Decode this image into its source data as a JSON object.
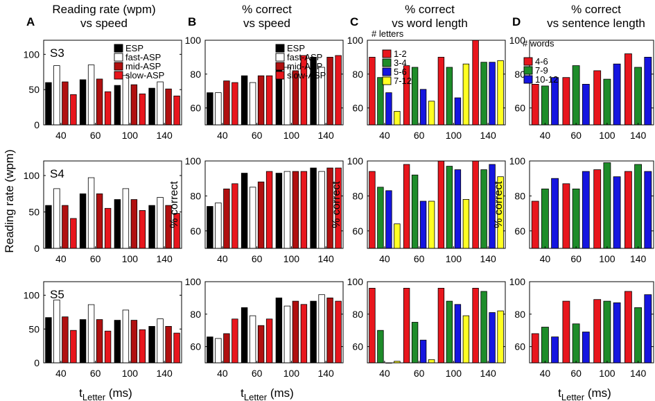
{
  "panels": [
    {
      "letter": "A",
      "title": [
        "Reading rate (wpm)",
        "vs speed"
      ]
    },
    {
      "letter": "B",
      "title": [
        "% correct",
        "vs speed"
      ]
    },
    {
      "letter": "C",
      "title": [
        "% correct",
        "vs word length"
      ]
    },
    {
      "letter": "D",
      "title": [
        "% correct",
        "vs sentence length"
      ]
    }
  ],
  "row_labels": [
    "S3",
    "S4",
    "S5"
  ],
  "y_axis_labels": {
    "rate": "Reading rate (wpm)",
    "correct": "% correct"
  },
  "x_axis_label": {
    "main": "t",
    "sub": "Letter",
    "unit": " (ms)"
  },
  "legends": {
    "speed": {
      "title": "",
      "entries": [
        "ESP",
        "fast-ASP",
        "mid-ASP",
        "slow-ASP"
      ]
    },
    "letters": {
      "title": "# letters",
      "entries": [
        "1-2",
        "3-4",
        "5-6",
        "7-12"
      ]
    },
    "words": {
      "title": "# words",
      "entries": [
        "4-6",
        "7-9",
        "10-12"
      ]
    }
  },
  "colors": {
    "speed": [
      "#000000",
      "#ffffff",
      "#b01010",
      "#e8161d"
    ],
    "length4": [
      "#e8161d",
      "#1e8c2a",
      "#1515e0",
      "#ffff22"
    ],
    "length3": [
      "#e8161d",
      "#1e8c2a",
      "#1515e0"
    ],
    "stroke": "#000000"
  },
  "chart_data": [
    {
      "id": "A-S3",
      "type": "bar",
      "categories": [
        "40",
        "60",
        "100",
        "140"
      ],
      "ylim": [
        0,
        120
      ],
      "yticks": [
        0,
        50,
        100
      ],
      "legend": "speed",
      "series": [
        {
          "name": "ESP",
          "values": [
            60,
            64,
            56,
            52
          ]
        },
        {
          "name": "fast-ASP",
          "values": [
            84,
            85,
            70,
            61
          ]
        },
        {
          "name": "mid-ASP",
          "values": [
            61,
            65,
            57,
            51
          ]
        },
        {
          "name": "slow-ASP",
          "values": [
            43,
            47,
            44,
            41
          ]
        }
      ]
    },
    {
      "id": "B-S3",
      "type": "bar",
      "categories": [
        "40",
        "60",
        "100",
        "140"
      ],
      "ylim": [
        50,
        100
      ],
      "yticks": [
        60,
        80,
        100
      ],
      "legend": "speed",
      "series": [
        {
          "name": "ESP",
          "values": [
            69,
            79,
            83,
            90
          ]
        },
        {
          "name": "fast-ASP",
          "values": [
            69,
            75,
            84,
            84
          ]
        },
        {
          "name": "mid-ASP",
          "values": [
            76,
            79,
            82,
            90
          ]
        },
        {
          "name": "slow-ASP",
          "values": [
            75,
            79,
            91,
            91
          ]
        }
      ]
    },
    {
      "id": "C-S3",
      "type": "bar",
      "categories": [
        "40",
        "60",
        "100",
        "140"
      ],
      "ylim": [
        50,
        100
      ],
      "yticks": [
        60,
        80,
        100
      ],
      "legend": "letters",
      "series": [
        {
          "name": "1-2",
          "values": [
            90,
            85,
            90,
            100
          ]
        },
        {
          "name": "3-4",
          "values": [
            78,
            84,
            84,
            87
          ]
        },
        {
          "name": "5-6",
          "values": [
            69,
            71,
            66,
            87
          ]
        },
        {
          "name": "7-12",
          "values": [
            58,
            64,
            86,
            88
          ]
        }
      ]
    },
    {
      "id": "D-S3",
      "type": "bar",
      "categories": [
        "40",
        "60",
        "100",
        "140"
      ],
      "ylim": [
        50,
        100
      ],
      "yticks": [
        60,
        80,
        100
      ],
      "legend": "words",
      "series": [
        {
          "name": "4-6",
          "values": [
            74,
            78,
            82,
            92
          ]
        },
        {
          "name": "7-9",
          "values": [
            73,
            85,
            77,
            84
          ]
        },
        {
          "name": "10-12",
          "values": [
            78,
            74,
            86,
            90
          ]
        }
      ]
    },
    {
      "id": "A-S4",
      "type": "bar",
      "categories": [
        "40",
        "60",
        "100",
        "140"
      ],
      "ylim": [
        0,
        120
      ],
      "yticks": [
        0,
        50,
        100
      ],
      "legend": null,
      "series": [
        {
          "name": "ESP",
          "values": [
            59,
            75,
            67,
            59
          ]
        },
        {
          "name": "fast-ASP",
          "values": [
            82,
            97,
            82,
            70
          ]
        },
        {
          "name": "mid-ASP",
          "values": [
            59,
            75,
            67,
            59
          ]
        },
        {
          "name": "slow-ASP",
          "values": [
            41,
            55,
            52,
            48
          ]
        }
      ]
    },
    {
      "id": "B-S4",
      "type": "bar",
      "categories": [
        "40",
        "60",
        "100",
        "140"
      ],
      "ylim": [
        50,
        100
      ],
      "yticks": [
        60,
        80,
        100
      ],
      "legend": null,
      "series": [
        {
          "name": "ESP",
          "values": [
            74,
            93,
            93,
            96
          ]
        },
        {
          "name": "fast-ASP",
          "values": [
            76,
            85,
            94,
            94
          ]
        },
        {
          "name": "mid-ASP",
          "values": [
            84,
            88,
            94,
            96
          ]
        },
        {
          "name": "slow-ASP",
          "values": [
            87,
            94,
            94,
            96
          ]
        }
      ]
    },
    {
      "id": "C-S4",
      "type": "bar",
      "categories": [
        "40",
        "60",
        "100",
        "140"
      ],
      "ylim": [
        50,
        100
      ],
      "yticks": [
        60,
        80,
        100
      ],
      "legend": null,
      "series": [
        {
          "name": "1-2",
          "values": [
            94,
            98,
            100,
            100
          ]
        },
        {
          "name": "3-4",
          "values": [
            85,
            92,
            97,
            95
          ]
        },
        {
          "name": "5-6",
          "values": [
            83,
            77,
            95,
            98
          ]
        },
        {
          "name": "7-12",
          "values": [
            64,
            77,
            78,
            91
          ]
        }
      ]
    },
    {
      "id": "D-S4",
      "type": "bar",
      "categories": [
        "40",
        "60",
        "100",
        "140"
      ],
      "ylim": [
        50,
        100
      ],
      "yticks": [
        60,
        80,
        100
      ],
      "legend": null,
      "series": [
        {
          "name": "4-6",
          "values": [
            77,
            87,
            95,
            94
          ]
        },
        {
          "name": "7-9",
          "values": [
            84,
            84,
            99,
            98
          ]
        },
        {
          "name": "10-12",
          "values": [
            90,
            94,
            91,
            94
          ]
        }
      ]
    },
    {
      "id": "A-S5",
      "type": "bar",
      "categories": [
        "40",
        "60",
        "100",
        "140"
      ],
      "ylim": [
        0,
        120
      ],
      "yticks": [
        0,
        50,
        100
      ],
      "legend": null,
      "series": [
        {
          "name": "ESP",
          "values": [
            67,
            64,
            63,
            54
          ]
        },
        {
          "name": "fast-ASP",
          "values": [
            93,
            86,
            78,
            65
          ]
        },
        {
          "name": "mid-ASP",
          "values": [
            68,
            64,
            63,
            54
          ]
        },
        {
          "name": "slow-ASP",
          "values": [
            48,
            47,
            49,
            44
          ]
        }
      ]
    },
    {
      "id": "B-S5",
      "type": "bar",
      "categories": [
        "40",
        "60",
        "100",
        "140"
      ],
      "ylim": [
        50,
        100
      ],
      "yticks": [
        60,
        80,
        100
      ],
      "legend": null,
      "series": [
        {
          "name": "ESP",
          "values": [
            66,
            84,
            90,
            88
          ]
        },
        {
          "name": "fast-ASP",
          "values": [
            65,
            79,
            85,
            92
          ]
        },
        {
          "name": "mid-ASP",
          "values": [
            68,
            73,
            88,
            90
          ]
        },
        {
          "name": "slow-ASP",
          "values": [
            77,
            77,
            86,
            88
          ]
        }
      ]
    },
    {
      "id": "C-S5",
      "type": "bar",
      "categories": [
        "40",
        "60",
        "100",
        "140"
      ],
      "ylim": [
        50,
        100
      ],
      "yticks": [
        60,
        80,
        100
      ],
      "legend": null,
      "series": [
        {
          "name": "1-2",
          "values": [
            96,
            96,
            96,
            96
          ]
        },
        {
          "name": "3-4",
          "values": [
            70,
            75,
            88,
            94
          ]
        },
        {
          "name": "5-6",
          "values": [
            50,
            64,
            86,
            81
          ]
        },
        {
          "name": "7-12",
          "values": [
            51,
            52,
            79,
            82
          ]
        }
      ]
    },
    {
      "id": "D-S5",
      "type": "bar",
      "categories": [
        "40",
        "60",
        "100",
        "140"
      ],
      "ylim": [
        50,
        100
      ],
      "yticks": [
        60,
        80,
        100
      ],
      "legend": null,
      "series": [
        {
          "name": "4-6",
          "values": [
            68,
            88,
            89,
            94
          ]
        },
        {
          "name": "7-9",
          "values": [
            72,
            74,
            88,
            84
          ]
        },
        {
          "name": "10-12",
          "values": [
            66,
            69,
            87,
            92
          ]
        }
      ]
    }
  ]
}
